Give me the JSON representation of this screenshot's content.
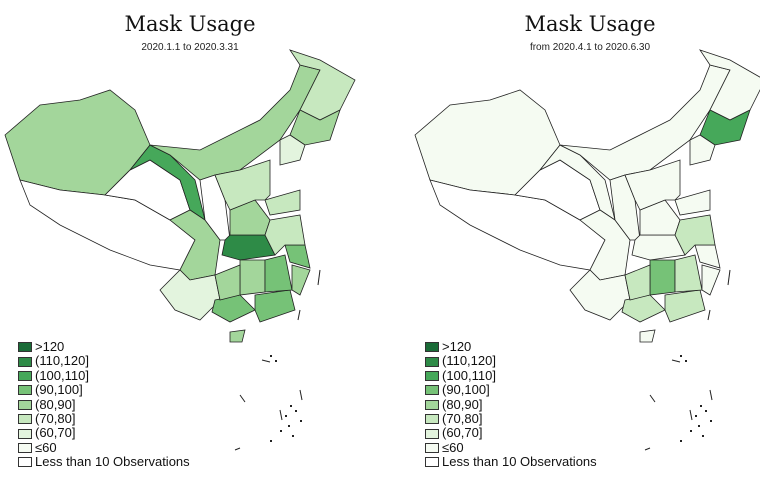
{
  "palette": {
    "gt120": "#1a6b37",
    "110_120": "#2e8b47",
    "100_110": "#46a85a",
    "90_100": "#76c277",
    "80_90": "#a3d69b",
    "70_80": "#c7e8bf",
    "60_70": "#e3f4de",
    "le60": "#f5fbf2",
    "none": "#ffffff"
  },
  "legend": [
    {
      "key": "gt120",
      "label": ">120"
    },
    {
      "key": "110_120",
      "label": "(110,120]"
    },
    {
      "key": "100_110",
      "label": "(100,110]"
    },
    {
      "key": "90_100",
      "label": "(90,100]"
    },
    {
      "key": "80_90",
      "label": "(80,90]"
    },
    {
      "key": "70_80",
      "label": "(70,80]"
    },
    {
      "key": "60_70",
      "label": "(60,70]"
    },
    {
      "key": "le60",
      "label": "≤60"
    },
    {
      "key": "none",
      "label": "Less than 10 Observations"
    }
  ],
  "panels": [
    {
      "title": "Mask Usage",
      "subtitle": "2020.1.1 to 2020.3.31",
      "regions": {
        "xinjiang": "80_90",
        "tibet": "none",
        "qinghai": "none",
        "gansu": "100_110",
        "innermongolia": "80_90",
        "heilongjiang": "70_80",
        "jilin": "80_90",
        "liaoning": "60_70",
        "sichuan": "80_90",
        "yunnan": "60_70",
        "shaanxi": "none",
        "hubei": "110_120",
        "henan": "80_90",
        "hunan": "80_90",
        "guangxi": "90_100",
        "guangdong": "90_100",
        "jiangxi": "90_100",
        "fujian": "80_90",
        "zhejiang": "90_100",
        "anhui": "70_80",
        "shandong": "70_80",
        "hebei": "70_80",
        "guizhou": "80_90",
        "hainan": "80_90"
      }
    },
    {
      "title": "Mask Usage",
      "subtitle": "from 2020.4.1 to 2020.6.30",
      "regions": {
        "xinjiang": "le60",
        "tibet": "none",
        "qinghai": "none",
        "gansu": "le60",
        "innermongolia": "le60",
        "heilongjiang": "le60",
        "jilin": "100_110",
        "liaoning": "le60",
        "sichuan": "le60",
        "yunnan": "le60",
        "shaanxi": "le60",
        "hubei": "le60",
        "henan": "le60",
        "hunan": "90_100",
        "guangxi": "70_80",
        "guangdong": "70_80",
        "jiangxi": "70_80",
        "fujian": "le60",
        "zhejiang": "le60",
        "anhui": "70_80",
        "shandong": "le60",
        "hebei": "le60",
        "guizhou": "70_80",
        "hainan": "le60"
      }
    }
  ]
}
